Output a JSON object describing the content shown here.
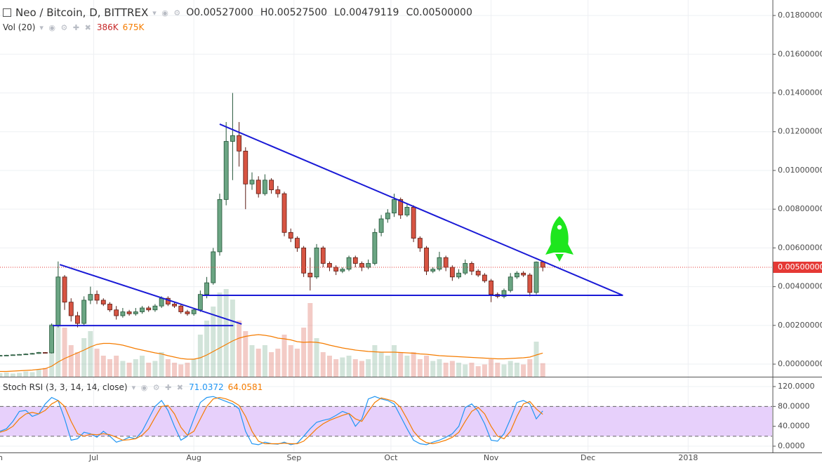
{
  "chart_data": [
    {
      "type": "candlestick",
      "title": "Neo / Bitcoin, D, BITTREX",
      "ohlc_legend": [
        {
          "key": "O",
          "label": "0.00527000"
        },
        {
          "key": "H",
          "label": "0.00527500"
        },
        {
          "key": "L",
          "label": "0.00479119"
        },
        {
          "key": "C",
          "label": "0.00500000"
        }
      ],
      "x": [
        0,
        2,
        4,
        6,
        8,
        10,
        12,
        14,
        16,
        18,
        20,
        22,
        24,
        26,
        28,
        30,
        32,
        34,
        36,
        38,
        40,
        42,
        44,
        46,
        48,
        50,
        52,
        54,
        56,
        58,
        60,
        62,
        64,
        66,
        68,
        70,
        72,
        74,
        76,
        78,
        80,
        82,
        84,
        86,
        88,
        90,
        92,
        94,
        96,
        98,
        100,
        102,
        104,
        106,
        108,
        110,
        112,
        114,
        116,
        118,
        120,
        122,
        124,
        126,
        128,
        130,
        132,
        134,
        136,
        138,
        140,
        142,
        144,
        146,
        148,
        150,
        152,
        154,
        156,
        158,
        160,
        162,
        164,
        166,
        168
      ],
      "open": [
        0.00044,
        0.00045,
        0.00046,
        0.00048,
        0.0005,
        0.00052,
        0.00055,
        0.0006,
        0.00058,
        0.002,
        0.0045,
        0.0032,
        0.0025,
        0.0021,
        0.0033,
        0.0036,
        0.0033,
        0.0031,
        0.0028,
        0.0025,
        0.0027,
        0.0026,
        0.0027,
        0.0029,
        0.0028,
        0.003,
        0.0034,
        0.0031,
        0.003,
        0.0027,
        0.0026,
        0.0028,
        0.0036,
        0.0042,
        0.0058,
        0.0085,
        0.0115,
        0.0118,
        0.011,
        0.0093,
        0.0095,
        0.0088,
        0.0095,
        0.009,
        0.0088,
        0.0068,
        0.0065,
        0.006,
        0.0047,
        0.0045,
        0.006,
        0.0052,
        0.005,
        0.0048,
        0.0049,
        0.0055,
        0.0052,
        0.005,
        0.0052,
        0.0068,
        0.0075,
        0.0078,
        0.0085,
        0.0077,
        0.0081,
        0.0065,
        0.006,
        0.0048,
        0.0049,
        0.0055,
        0.005,
        0.0045,
        0.0047,
        0.0052,
        0.0048,
        0.0046,
        0.0043,
        0.0036,
        0.0035,
        0.0038,
        0.0045,
        0.0047,
        0.0046,
        0.0037,
        0.00527
      ],
      "high": [
        0.00047,
        0.00048,
        0.0005,
        0.00052,
        0.00055,
        0.00058,
        0.00063,
        0.00062,
        0.0021,
        0.0053,
        0.0046,
        0.0034,
        0.0027,
        0.0035,
        0.004,
        0.0038,
        0.0034,
        0.0032,
        0.003,
        0.0029,
        0.0028,
        0.0029,
        0.003,
        0.003,
        0.0031,
        0.0035,
        0.0035,
        0.0032,
        0.0031,
        0.0028,
        0.0029,
        0.0038,
        0.0045,
        0.006,
        0.0088,
        0.0125,
        0.014,
        0.0125,
        0.0112,
        0.0099,
        0.0097,
        0.0098,
        0.0096,
        0.0092,
        0.0089,
        0.007,
        0.0066,
        0.0061,
        0.0055,
        0.0062,
        0.0061,
        0.0053,
        0.0051,
        0.005,
        0.0056,
        0.0056,
        0.0053,
        0.0054,
        0.007,
        0.0077,
        0.008,
        0.0088,
        0.0086,
        0.0083,
        0.0082,
        0.0066,
        0.0061,
        0.005,
        0.0058,
        0.0056,
        0.0051,
        0.0049,
        0.0054,
        0.0053,
        0.0049,
        0.0047,
        0.0044,
        0.0037,
        0.0039,
        0.0047,
        0.0048,
        0.0048,
        0.0047,
        0.0053,
        0.005275
      ],
      "low": [
        0.00042,
        0.00043,
        0.00044,
        0.00046,
        0.00048,
        0.0005,
        0.00053,
        0.00056,
        0.00055,
        0.0019,
        0.0028,
        0.0022,
        0.0019,
        0.002,
        0.0031,
        0.0031,
        0.003,
        0.0027,
        0.0023,
        0.0024,
        0.0025,
        0.0025,
        0.0026,
        0.0027,
        0.0027,
        0.0029,
        0.003,
        0.0029,
        0.0026,
        0.0025,
        0.0025,
        0.0027,
        0.0034,
        0.0041,
        0.0056,
        0.0082,
        0.0095,
        0.0102,
        0.008,
        0.009,
        0.0086,
        0.0087,
        0.0088,
        0.0086,
        0.0066,
        0.0063,
        0.0058,
        0.0045,
        0.0038,
        0.0044,
        0.005,
        0.0048,
        0.0046,
        0.0047,
        0.0048,
        0.005,
        0.0048,
        0.0049,
        0.0051,
        0.0066,
        0.0073,
        0.0076,
        0.0075,
        0.0076,
        0.0063,
        0.0058,
        0.0046,
        0.0047,
        0.0048,
        0.0048,
        0.0043,
        0.0044,
        0.0046,
        0.0046,
        0.0045,
        0.0042,
        0.0032,
        0.0034,
        0.0034,
        0.0037,
        0.0044,
        0.0045,
        0.0035,
        0.0036,
        0.00479119
      ],
      "close": [
        0.00045,
        0.00046,
        0.00048,
        0.0005,
        0.00052,
        0.00055,
        0.0006,
        0.00058,
        0.002,
        0.0045,
        0.0032,
        0.0025,
        0.0021,
        0.0033,
        0.0036,
        0.0033,
        0.0031,
        0.0028,
        0.0025,
        0.0027,
        0.0026,
        0.0027,
        0.0029,
        0.0028,
        0.003,
        0.0034,
        0.0031,
        0.003,
        0.0027,
        0.0026,
        0.0028,
        0.0036,
        0.0042,
        0.0058,
        0.0085,
        0.0115,
        0.0118,
        0.011,
        0.0093,
        0.0095,
        0.0088,
        0.0095,
        0.009,
        0.0088,
        0.0068,
        0.0065,
        0.006,
        0.0047,
        0.0045,
        0.006,
        0.0052,
        0.005,
        0.0048,
        0.0049,
        0.0055,
        0.0052,
        0.005,
        0.0052,
        0.0068,
        0.0075,
        0.0078,
        0.0085,
        0.0077,
        0.0081,
        0.0065,
        0.006,
        0.0048,
        0.0049,
        0.0055,
        0.005,
        0.0045,
        0.0047,
        0.0052,
        0.0048,
        0.0046,
        0.0043,
        0.0036,
        0.0035,
        0.0038,
        0.0045,
        0.0047,
        0.0046,
        0.0037,
        0.00527,
        0.005
      ],
      "up_color": "#6ba583",
      "down_color": "#d75442",
      "xlim": [
        0,
        239
      ],
      "xticks": [
        {
          "value": -1,
          "label": "Jun"
        },
        {
          "value": 29,
          "label": "Jul"
        },
        {
          "value": 60,
          "label": "Aug"
        },
        {
          "value": 91,
          "label": "Sep"
        },
        {
          "value": 121,
          "label": "Oct"
        },
        {
          "value": 152,
          "label": "Nov"
        },
        {
          "value": 182,
          "label": "Dec"
        },
        {
          "value": 213,
          "label": "2018"
        }
      ],
      "ylim": [
        -0.00065,
        0.0188
      ],
      "yticks": [
        {
          "value": 0,
          "label": "0.00000000"
        },
        {
          "value": 0.002,
          "label": "0.00200000"
        },
        {
          "value": 0.004,
          "label": "0.00400000"
        },
        {
          "value": 0.006,
          "label": "0.00600000"
        },
        {
          "value": 0.008,
          "label": "0.00800000"
        },
        {
          "value": 0.01,
          "label": "0.01000000"
        },
        {
          "value": 0.012,
          "label": "0.01200000"
        },
        {
          "value": 0.014,
          "label": "0.01400000"
        },
        {
          "value": 0.016,
          "label": "0.01600000"
        },
        {
          "value": 0.018,
          "label": "0.01800000"
        }
      ],
      "grid": true,
      "last_price": {
        "value": 0.005,
        "label": "0.00500000",
        "color": "#e53935"
      },
      "volume": {
        "title": "Vol (20)",
        "values": [
          100000,
          120000,
          90000,
          110000,
          150000,
          130000,
          200000,
          250000,
          1500000,
          2200000,
          1400000,
          900000,
          700000,
          1100000,
          1300000,
          800000,
          600000,
          500000,
          600000,
          450000,
          400000,
          500000,
          600000,
          400000,
          450000,
          700000,
          500000,
          400000,
          350000,
          400000,
          500000,
          1200000,
          1600000,
          2000000,
          2400000,
          2500000,
          2200000,
          1600000,
          1300000,
          900000,
          800000,
          900000,
          700000,
          800000,
          1200000,
          900000,
          800000,
          1400000,
          2100000,
          1100000,
          700000,
          600000,
          500000,
          550000,
          600000,
          500000,
          450000,
          500000,
          900000,
          700000,
          600000,
          900000,
          700000,
          600000,
          700000,
          500000,
          600000,
          450000,
          500000,
          400000,
          450000,
          400000,
          350000,
          400000,
          300000,
          350000,
          500000,
          400000,
          350000,
          450000,
          400000,
          350000,
          500000,
          1000000,
          386000
        ],
        "ma": [
          150000,
          150000,
          160000,
          170000,
          180000,
          190000,
          210000,
          230000,
          300000,
          420000,
          520000,
          600000,
          680000,
          760000,
          850000,
          920000,
          950000,
          950000,
          930000,
          900000,
          850000,
          800000,
          760000,
          720000,
          680000,
          650000,
          600000,
          560000,
          520000,
          500000,
          500000,
          540000,
          620000,
          720000,
          820000,
          920000,
          1020000,
          1100000,
          1150000,
          1180000,
          1200000,
          1180000,
          1150000,
          1100000,
          1080000,
          1050000,
          1000000,
          980000,
          990000,
          980000,
          950000,
          900000,
          860000,
          820000,
          790000,
          760000,
          740000,
          720000,
          710000,
          700000,
          700000,
          700000,
          690000,
          680000,
          670000,
          650000,
          640000,
          620000,
          600000,
          590000,
          580000,
          570000,
          560000,
          550000,
          540000,
          530000,
          520000,
          510000,
          510000,
          520000,
          530000,
          540000,
          560000,
          620000,
          675000
        ],
        "labels": [
          "386K",
          "675K"
        ],
        "label_colors": [
          "#c62828",
          "#f57c00"
        ],
        "ma_color": "#f57c00",
        "lim": [
          0,
          4000000
        ]
      },
      "trendlines": {
        "color": "#1a1ad6",
        "lines": [
          {
            "x": [
              18.5,
              74.8
            ],
            "y": [
              0.00514,
              0.00207
            ]
          },
          {
            "x": [
              16.3,
              72.2
            ],
            "y": [
              0.00199,
              0.00199
            ]
          },
          {
            "x": [
              68,
              192.8
            ],
            "y": [
              0.01239,
              0.00355
            ]
          },
          {
            "x": [
              62.6,
              192.8
            ],
            "y": [
              0.00355,
              0.00355
            ]
          }
        ]
      }
    },
    {
      "type": "line",
      "title": "Stoch RSI (3, 3, 14, 14, close)",
      "series": [
        {
          "color": "#2196f3",
          "values": [
            30,
            35,
            50,
            70,
            72,
            60,
            65,
            85,
            98,
            92,
            55,
            12,
            15,
            28,
            25,
            18,
            30,
            20,
            8,
            12,
            18,
            15,
            30,
            55,
            80,
            92,
            72,
            40,
            12,
            20,
            55,
            88,
            98,
            100,
            95,
            90,
            85,
            75,
            30,
            5,
            3,
            8,
            5,
            4,
            8,
            3,
            6,
            20,
            35,
            48,
            52,
            55,
            62,
            70,
            65,
            40,
            55,
            95,
            100,
            95,
            92,
            85,
            60,
            35,
            12,
            5,
            3,
            8,
            12,
            18,
            25,
            40,
            78,
            85,
            70,
            45,
            12,
            10,
            25,
            55,
            88,
            92,
            85,
            55,
            71.0372
          ]
        },
        {
          "color": "#f57c00",
          "values": [
            28,
            32,
            40,
            55,
            65,
            68,
            65,
            72,
            85,
            92,
            80,
            50,
            25,
            20,
            24,
            23,
            25,
            23,
            18,
            12,
            13,
            15,
            22,
            35,
            58,
            80,
            82,
            65,
            38,
            22,
            30,
            55,
            80,
            95,
            98,
            95,
            90,
            82,
            60,
            30,
            10,
            5,
            5,
            5,
            6,
            5,
            5,
            10,
            22,
            35,
            45,
            52,
            57,
            62,
            66,
            55,
            50,
            70,
            88,
            97,
            94,
            90,
            78,
            55,
            30,
            15,
            7,
            5,
            8,
            12,
            18,
            28,
            50,
            70,
            78,
            65,
            40,
            20,
            15,
            30,
            60,
            85,
            90,
            75,
            64.0581
          ]
        }
      ],
      "ylim": [
        -12.7,
        138.4
      ],
      "yticks": [
        {
          "value": 0,
          "label": "0.0000"
        },
        {
          "value": 40,
          "label": "40.0000"
        },
        {
          "value": 80,
          "label": "80.0000"
        },
        {
          "value": 120,
          "label": "120.0000"
        }
      ],
      "band": [
        20,
        80
      ],
      "band_color": "#e7d0fb"
    }
  ]
}
